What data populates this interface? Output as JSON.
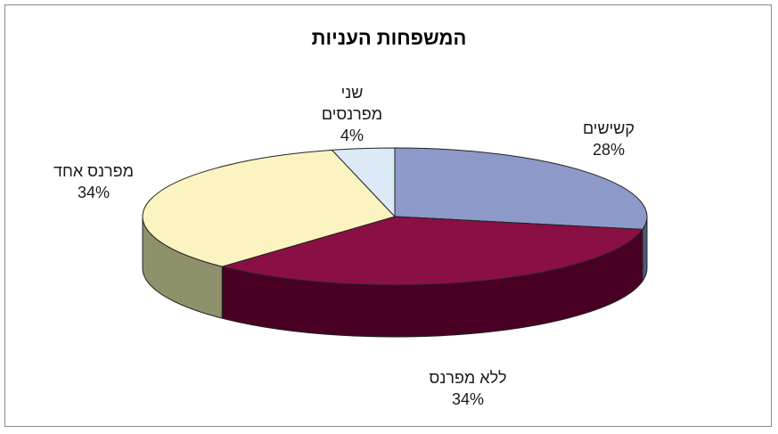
{
  "chart_data": {
    "type": "pie",
    "title": "המשפחות העניות",
    "slices": [
      {
        "label": "קשישים",
        "value": 28,
        "value_label": "28%",
        "color": "#8d99c8",
        "side_color": "#4f5878"
      },
      {
        "label": "ללא מפרנס",
        "value": 34,
        "value_label": "34%",
        "color": "#8a0f45",
        "side_color": "#4a0025"
      },
      {
        "label": "מפרנס אחד",
        "value": 34,
        "value_label": "34%",
        "color": "#fbf3c0",
        "side_color": "#8f916a"
      },
      {
        "label": "שני מפרנסים",
        "label_lines": [
          "שני",
          "מפרנסים"
        ],
        "value": 4,
        "value_label": "4%",
        "color": "#dce9f6",
        "side_color": "#9aa5b3"
      }
    ],
    "start_angle_deg": 270,
    "direction": "clockwise",
    "three_d": true,
    "legend": "none"
  }
}
